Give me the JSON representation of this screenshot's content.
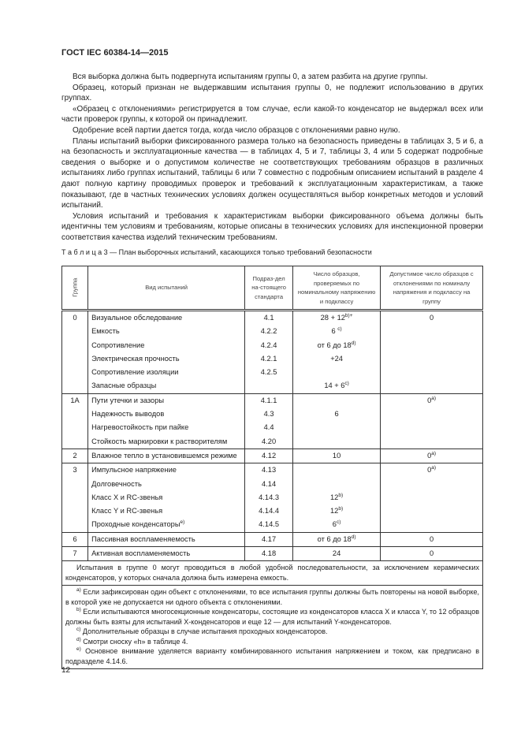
{
  "header": "ГОСТ IEC 60384-14—2015",
  "paragraphs": [
    "Вся выборка должна быть подвергнута испытаниям группы 0, а затем разбита на другие группы.",
    "Образец, который признан не выдержавшим испытания группы 0, не подлежит использованию в других группах.",
    "«Образец с отклонениями» регистрируется в том случае, если какой-то конденсатор не выдержал всех или части проверок группы, к которой он принадлежит.",
    "Одобрение всей партии дается тогда, когда число образцов с отклонениями равно нулю.",
    "Планы испытаний выборки фиксированного размера только на безопасность приведены в таблицах 3, 5 и 6, а на безопасность и эксплуатационные качества — в таблицах 4, 5 и 7, таблицы 3, 4 или 5 содержат подробные сведения о выборке и о допустимом количестве не соответствующих требованиям образцов в различных испытаниях либо группах испытаний, таблицы 6 или 7 совместно с подробным описанием испытаний в разделе 4 дают полную картину проводимых проверок и требований к эксплуатационным характеристикам, а также показывают, где в частных технических условиях должен осуществляться выбор конкретных методов и условий испытаний.",
    "Условия испытаний и требования к характеристикам выборки фиксированного объема должны быть идентичны тем условиям и требованиям, которые описаны в технических условиях для инспекционной проверки соответствия качества изделий техническим требованиям."
  ],
  "table": {
    "caption": "Т а б л и ц а  3 — План выборочных испытаний, касающихся только требований безопасности",
    "headers": [
      "Группа",
      "Вид испытаний",
      "Подраз-дел на-стоящего стандарта",
      "Число образцов, проверяемых по номинальному напряжению и подклассу",
      "Допустимое число образцов с отклонениями по номиналу напряжения и подклассу на группу"
    ],
    "rows": [
      {
        "g": "0",
        "t": "Визуальное обследование",
        "s": "4.1",
        "n": "28 + 12",
        "ns": "b)+",
        "a": "0",
        "as": "",
        "top": true
      },
      {
        "g": "",
        "t": "Емкость",
        "s": "4.2.2",
        "n": "6 ",
        "ns": "c)",
        "a": ""
      },
      {
        "g": "",
        "t": "Сопротивление",
        "s": "4.2.4",
        "n": "от 6 до 18",
        "ns": "d)",
        "a": ""
      },
      {
        "g": "",
        "t": "Электрическая прочность",
        "s": "4.2.1",
        "n": "+24",
        "a": ""
      },
      {
        "g": "",
        "t": "Сопротивление изоляции",
        "s": "4.2.5",
        "n": "",
        "a": ""
      },
      {
        "g": "",
        "t": "Запасные образцы",
        "s": "",
        "n": "14 + 6",
        "ns": "c)",
        "a": ""
      },
      {
        "g": "1A",
        "t": "Пути утечки и зазоры",
        "s": "4.1.1",
        "n": "",
        "a": "0",
        "as": "a)",
        "top": true
      },
      {
        "g": "",
        "t": "Надежность выводов",
        "s": "4.3",
        "n": "6",
        "a": ""
      },
      {
        "g": "",
        "t": "Нагревостойкость при пайке",
        "s": "4.4",
        "n": "",
        "a": ""
      },
      {
        "g": "",
        "t": "Стойкость маркировки к растворителям",
        "s": "4.20",
        "n": "",
        "a": ""
      },
      {
        "g": "2",
        "t": "Влажное тепло в установившемся режиме",
        "s": "4.12",
        "n": "10",
        "a": "0",
        "as": "a)",
        "top": true
      },
      {
        "g": "3",
        "t": "Импульсное напряжение",
        "s": "4.13",
        "n": "",
        "a": "0",
        "as": "a)",
        "top": true
      },
      {
        "g": "",
        "t": "Долговечность",
        "s": "4.14",
        "n": "",
        "a": ""
      },
      {
        "g": "",
        "t": "Класс X и RC-звенья",
        "s": "4.14.3",
        "n": "12",
        "ns": "b)",
        "a": ""
      },
      {
        "g": "",
        "t": "Класс Y и RC-звенья",
        "s": "4.14.4",
        "n": "12",
        "ns": "b)",
        "a": ""
      },
      {
        "g": "",
        "t": "Проходные конденсаторы",
        "ts": "e)",
        "s": "4.14.5",
        "n": "6",
        "ns": "c)",
        "a": ""
      },
      {
        "g": "6",
        "t": "Пассивная воспламеняемость",
        "s": "4.17",
        "n": "от 6 до 18",
        "ns": "d)",
        "a": "0",
        "top": true
      },
      {
        "g": "7",
        "t": "Активная воспламеняемость",
        "s": "4.18",
        "n": "24",
        "a": "0",
        "top": true
      }
    ],
    "note": "Испытания в группе 0 могут проводиться в любой удобной последовательности, за исключением керамических конденсаторов, у которых сначала должна быть измерена емкость.",
    "footnotes": [
      {
        "m": "a)",
        "t": " Если зафиксирован один объект с отклонениями, то все испытания группы должны быть повторены на новой выборке, в которой уже не допускается ни одного объекта с отклонениями."
      },
      {
        "m": "b)",
        "t": " Если испытываются многосекционные конденсаторы, состоящие из конденсаторов класса X и класса Y, то 12 образцов должны быть взяты для испытаний X-конденсаторов и еще 12 — для испытаний Y-конденсаторов."
      },
      {
        "m": "c)",
        "t": " Дополнительные образцы в случае испытания проходных конденсаторов."
      },
      {
        "m": "d)",
        "t": " Смотри сноску «h» в таблице 4."
      },
      {
        "m": "e)",
        "t": " Основное внимание уделяется варианту комбинированного испытания напряжением и током, как предписано в подразделе 4.14.6."
      }
    ]
  },
  "page_number": "12"
}
